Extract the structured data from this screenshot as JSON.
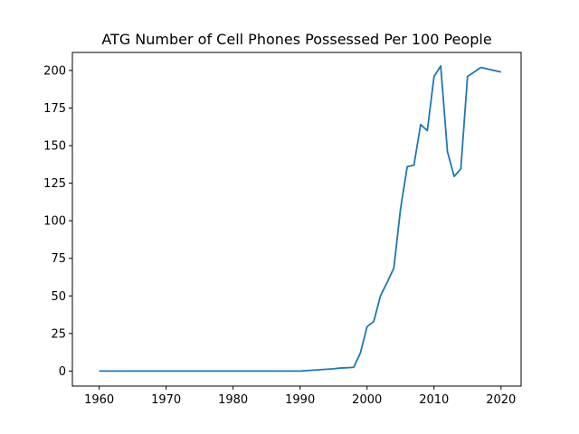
{
  "chart_data": {
    "type": "line",
    "title": "ATG Number of Cell Phones Possessed Per 100 People",
    "xlabel": "",
    "ylabel": "",
    "xlim": [
      1956,
      2023
    ],
    "ylim": [
      -10,
      212
    ],
    "xticks": [
      1960,
      1970,
      1980,
      1990,
      2000,
      2010,
      2020
    ],
    "yticks": [
      0,
      25,
      50,
      75,
      100,
      125,
      150,
      175,
      200
    ],
    "grid": false,
    "series": [
      {
        "name": "",
        "color": "#1f77b4",
        "x": [
          1960,
          1965,
          1970,
          1975,
          1980,
          1985,
          1990,
          1995,
          1996,
          1997,
          1998,
          1999,
          2000,
          2001,
          2002,
          2003,
          2004,
          2005,
          2006,
          2007,
          2008,
          2009,
          2010,
          2011,
          2012,
          2013,
          2014,
          2015,
          2016,
          2017,
          2018,
          2019,
          2020
        ],
        "y": [
          0,
          0,
          0,
          0,
          0,
          0,
          0,
          1.5,
          2,
          2.2,
          2.5,
          12,
          29.5,
          33,
          50,
          59,
          68.5,
          108,
          136,
          137,
          164,
          160,
          196,
          203,
          146,
          129.5,
          134.5,
          196,
          199,
          202,
          201,
          200,
          199
        ]
      }
    ]
  }
}
